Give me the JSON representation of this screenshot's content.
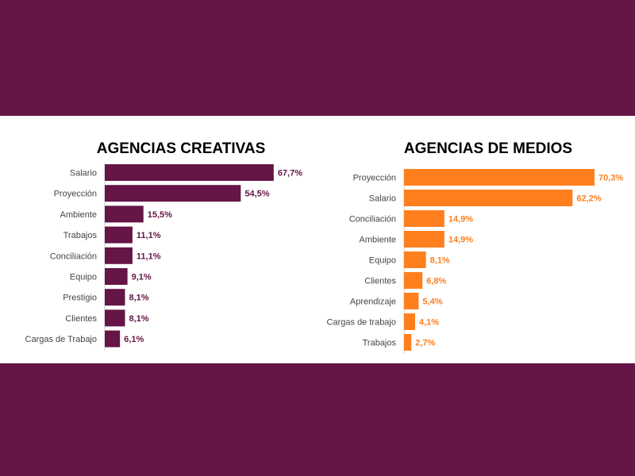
{
  "colors": {
    "background": "#651546",
    "panel": "#ffffff",
    "creative": "#651546",
    "media": "#ff7f1f"
  },
  "chart_data": [
    {
      "type": "bar",
      "orientation": "horizontal",
      "title": "AGENCIAS CREATIVAS",
      "color": "#651546",
      "categories": [
        "Salario",
        "Proyección",
        "Ambiente",
        "Trabajos",
        "Conciliación",
        "Equipo",
        "Prestigio",
        "Clientes",
        "Cargas de Trabajo"
      ],
      "values": [
        67.7,
        54.5,
        15.5,
        11.1,
        11.1,
        9.1,
        8.1,
        8.1,
        6.1
      ],
      "labels": [
        "67,7%",
        "54,5%",
        "15,5%",
        "11,1%",
        "11,1%",
        "9,1%",
        "8,1%",
        "8,1%",
        "6,1%"
      ],
      "xlim": [
        0,
        70.3
      ],
      "grid": false
    },
    {
      "type": "bar",
      "orientation": "horizontal",
      "title": "AGENCIAS DE MEDIOS",
      "color": "#ff7f1f",
      "categories": [
        "Proyección",
        "Salario",
        "Conciliación",
        "Ambiente",
        "Equipo",
        "Clientes",
        "Aprendizaje",
        "Cargas de trabajo",
        "Trabajos"
      ],
      "values": [
        70.3,
        62.2,
        14.9,
        14.9,
        8.1,
        6.8,
        5.4,
        4.1,
        2.7
      ],
      "labels": [
        "70,3%",
        "62,2%",
        "14,9%",
        "14,9%",
        "8,1%",
        "6,8%",
        "5,4%",
        "4,1%",
        "2,7%"
      ],
      "xlim": [
        0,
        70.3
      ],
      "grid": false
    }
  ]
}
